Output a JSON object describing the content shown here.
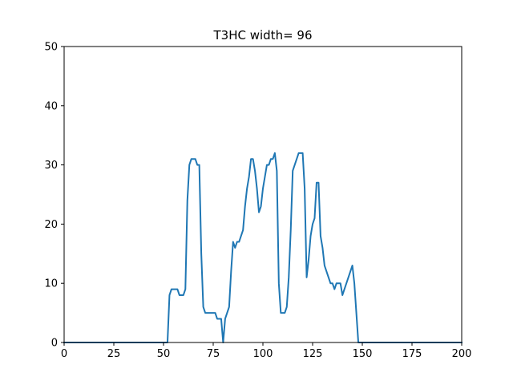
{
  "chart_data": {
    "type": "line",
    "title": "T3HC width= 96",
    "xlabel": "",
    "ylabel": "",
    "xlim": [
      0,
      200
    ],
    "ylim": [
      0,
      50
    ],
    "xticks": [
      0,
      25,
      50,
      75,
      100,
      125,
      150,
      175,
      200
    ],
    "yticks": [
      0,
      10,
      20,
      30,
      40,
      50
    ],
    "grid": false,
    "line_color": "#1f77b4",
    "series": [
      {
        "x": [
          0,
          52,
          53,
          54,
          55,
          56,
          57,
          58,
          59,
          60,
          61,
          62,
          63,
          64,
          65,
          66,
          67,
          68,
          69,
          70,
          71,
          72,
          73,
          74,
          75,
          76,
          77,
          78,
          79,
          80,
          81,
          82,
          83,
          84,
          85,
          86,
          87,
          88,
          89,
          90,
          91,
          92,
          93,
          94,
          95,
          96,
          97,
          98,
          99,
          100,
          101,
          102,
          103,
          104,
          105,
          106,
          107,
          108,
          109,
          110,
          111,
          112,
          113,
          114,
          115,
          116,
          117,
          118,
          119,
          120,
          121,
          122,
          123,
          124,
          125,
          126,
          127,
          128,
          129,
          130,
          131,
          132,
          133,
          134,
          135,
          136,
          137,
          138,
          139,
          140,
          141,
          142,
          143,
          144,
          145,
          146,
          147,
          148,
          149,
          150,
          200
        ],
        "y": [
          0,
          0,
          8,
          9,
          9,
          9,
          9,
          8,
          8,
          8,
          9,
          24,
          30,
          31,
          31,
          31,
          30,
          30,
          15,
          6,
          5,
          5,
          5,
          5,
          5,
          5,
          4,
          4,
          4,
          0,
          4,
          5,
          6,
          12,
          17,
          16,
          17,
          17,
          18,
          19,
          23,
          26,
          28,
          31,
          31,
          29,
          26,
          22,
          23,
          26,
          28,
          30,
          30,
          31,
          31,
          32,
          29,
          10,
          5,
          5,
          5,
          6,
          11,
          19,
          29,
          30,
          31,
          32,
          32,
          32,
          26,
          11,
          14,
          18,
          20,
          21,
          27,
          27,
          18,
          16,
          13,
          12,
          11,
          10,
          10,
          9,
          10,
          10,
          10,
          8,
          9,
          10,
          11,
          12,
          13,
          10,
          5,
          0,
          0,
          0,
          0
        ]
      }
    ]
  }
}
